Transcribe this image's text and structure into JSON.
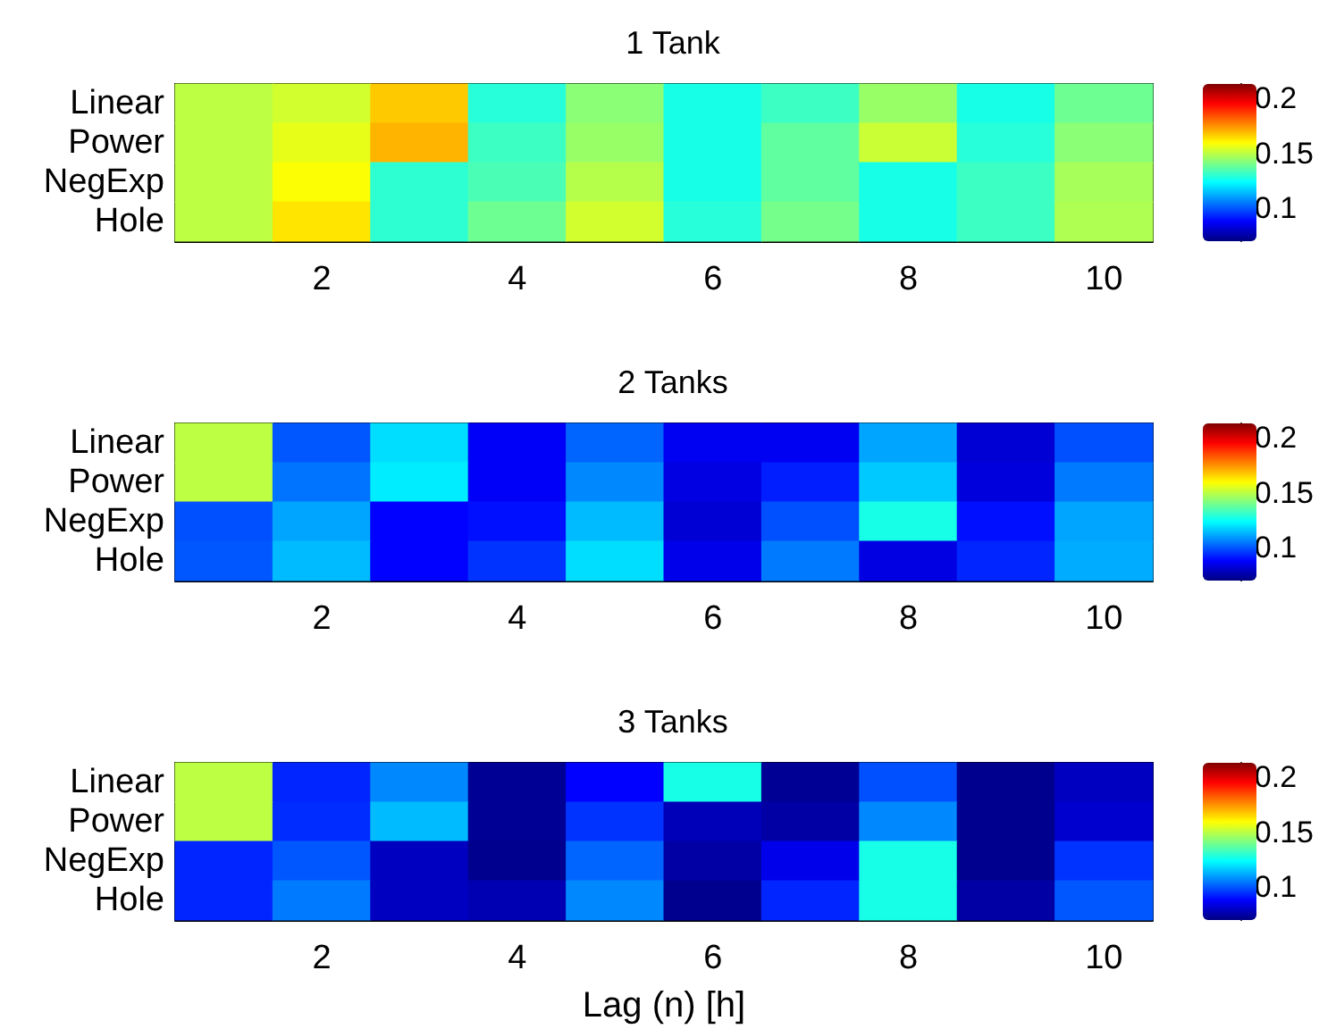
{
  "chart_data": [
    {
      "type": "heatmap",
      "title": "1 Tank",
      "categories": [
        null,
        "2",
        null,
        "4",
        null,
        "6",
        null,
        "8",
        null,
        "10"
      ],
      "y_categories": [
        "Linear",
        "Power",
        "NegExp",
        "Hole"
      ],
      "cells": [
        [
          0.15,
          0.153,
          0.167,
          0.129,
          0.143,
          0.127,
          0.132,
          0.145,
          0.127,
          0.139
        ],
        [
          0.15,
          0.156,
          0.17,
          0.132,
          0.145,
          0.127,
          0.137,
          0.152,
          0.129,
          0.143
        ],
        [
          0.15,
          0.159,
          0.13,
          0.134,
          0.149,
          0.127,
          0.137,
          0.127,
          0.132,
          0.147
        ],
        [
          0.15,
          0.163,
          0.13,
          0.139,
          0.153,
          0.129,
          0.14,
          0.127,
          0.132,
          0.148
        ]
      ],
      "clim": [
        0.07,
        0.213
      ],
      "cticks": [
        0.1,
        0.15,
        0.2
      ]
    },
    {
      "type": "heatmap",
      "title": "2 Tanks",
      "categories": [
        null,
        "2",
        null,
        "4",
        null,
        "6",
        null,
        "8",
        null,
        "10"
      ],
      "y_categories": [
        "Linear",
        "Power",
        "NegExp",
        "Hole"
      ],
      "cells": [
        [
          0.15,
          0.1,
          0.119,
          0.087,
          0.102,
          0.086,
          0.086,
          0.111,
          0.082,
          0.099
        ],
        [
          0.15,
          0.104,
          0.121,
          0.087,
          0.107,
          0.084,
          0.092,
          0.116,
          0.083,
          0.105
        ],
        [
          0.099,
          0.111,
          0.088,
          0.09,
          0.114,
          0.082,
          0.099,
          0.127,
          0.09,
          0.111
        ],
        [
          0.1,
          0.114,
          0.088,
          0.095,
          0.119,
          0.085,
          0.105,
          0.084,
          0.093,
          0.112
        ]
      ],
      "clim": [
        0.07,
        0.213
      ],
      "cticks": [
        0.1,
        0.15,
        0.2
      ]
    },
    {
      "type": "heatmap",
      "title": "3 Tanks",
      "xlabel": "Lag (n) [h]",
      "categories": [
        null,
        "2",
        null,
        "4",
        null,
        "6",
        null,
        "8",
        null,
        "10"
      ],
      "y_categories": [
        "Linear",
        "Power",
        "NegExp",
        "Hole"
      ],
      "cells": [
        [
          0.15,
          0.093,
          0.107,
          0.073,
          0.088,
          0.127,
          0.073,
          0.099,
          0.072,
          0.079
        ],
        [
          0.15,
          0.094,
          0.114,
          0.073,
          0.095,
          0.078,
          0.075,
          0.107,
          0.072,
          0.081
        ],
        [
          0.093,
          0.1,
          0.079,
          0.072,
          0.102,
          0.075,
          0.085,
          0.127,
          0.072,
          0.095
        ],
        [
          0.093,
          0.105,
          0.079,
          0.077,
          0.107,
          0.072,
          0.093,
          0.127,
          0.075,
          0.1
        ]
      ],
      "clim": [
        0.07,
        0.213
      ],
      "cticks": [
        0.1,
        0.15,
        0.2
      ]
    }
  ]
}
